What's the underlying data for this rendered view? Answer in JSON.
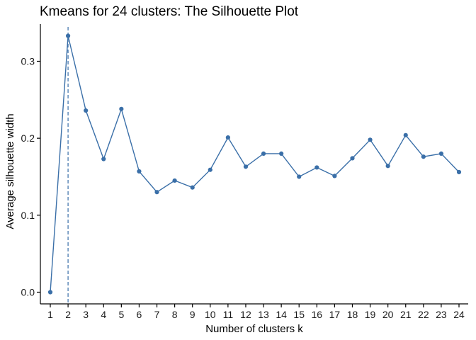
{
  "chart_data": {
    "type": "line",
    "title": "Kmeans for 24 clusters: The Silhouette Plot",
    "xlabel": "Number of clusters k",
    "ylabel": "Average silhouette width",
    "x": [
      "1",
      "2",
      "3",
      "4",
      "5",
      "6",
      "7",
      "8",
      "9",
      "10",
      "11",
      "12",
      "13",
      "14",
      "15",
      "16",
      "17",
      "18",
      "19",
      "20",
      "21",
      "22",
      "23",
      "24"
    ],
    "series": [
      {
        "name": "Average silhouette width",
        "values": [
          0.0,
          0.333,
          0.236,
          0.173,
          0.238,
          0.157,
          0.13,
          0.145,
          0.136,
          0.159,
          0.201,
          0.163,
          0.18,
          0.18,
          0.15,
          0.162,
          0.151,
          0.174,
          0.198,
          0.164,
          0.204,
          0.176,
          0.18,
          0.156
        ]
      }
    ],
    "ylim": [
      -0.015,
      0.35
    ],
    "yticks": [
      0.0,
      0.1,
      0.2,
      0.3
    ],
    "ytick_labels": [
      "0.0",
      "0.1",
      "0.2",
      "0.3"
    ],
    "optimal_k": 2,
    "grid": false,
    "colors": {
      "line": "#3a6fa8",
      "point": "#3a6fa8",
      "vline": "#3a6fa8",
      "axis": "#000000"
    }
  }
}
